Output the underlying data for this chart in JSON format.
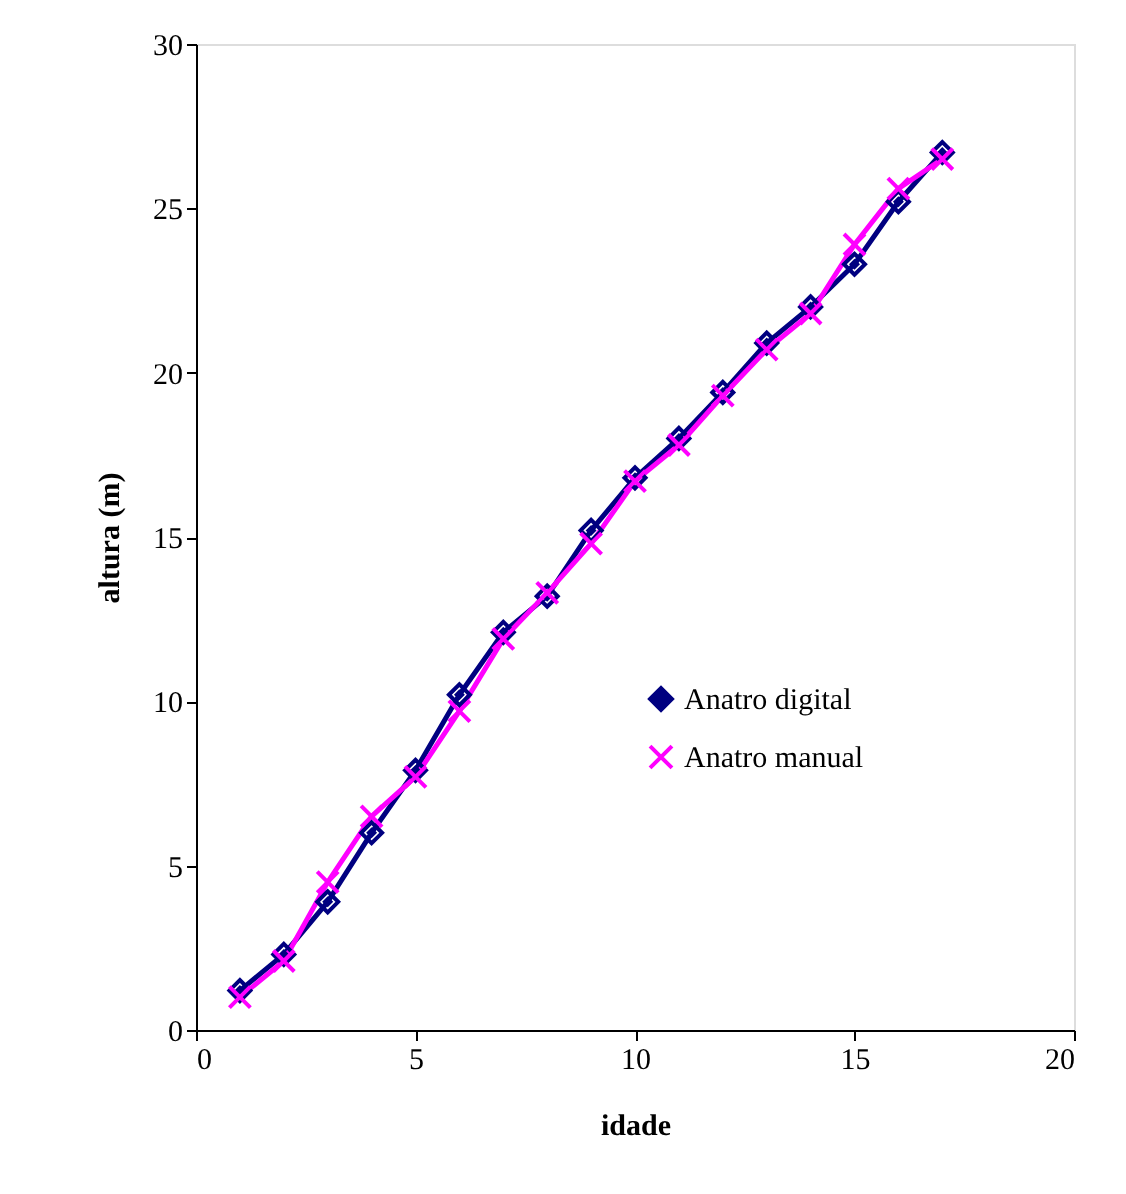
{
  "chart_data": {
    "type": "line",
    "xlabel": "idade",
    "ylabel": "altura (m)",
    "x": [
      1,
      2,
      3,
      4,
      5,
      6,
      7,
      8,
      9,
      10,
      11,
      12,
      13,
      14,
      15,
      16,
      17
    ],
    "series": [
      {
        "name": "Anatro digital",
        "color": "#000080",
        "marker": "diamond",
        "values": [
          1.2,
          2.3,
          3.9,
          6.0,
          7.9,
          10.2,
          12.1,
          13.2,
          15.2,
          16.8,
          18.0,
          19.4,
          20.9,
          22.0,
          23.3,
          25.2,
          26.7
        ]
      },
      {
        "name": "Anatro manual",
        "color": "#ff00ff",
        "marker": "cross",
        "values": [
          1.0,
          2.1,
          4.5,
          6.5,
          7.7,
          9.7,
          11.9,
          13.3,
          14.8,
          16.7,
          17.8,
          19.3,
          20.7,
          21.8,
          23.9,
          25.6,
          26.5
        ]
      }
    ],
    "xlim": [
      0,
      20
    ],
    "xticks": [
      0,
      5,
      10,
      15,
      20
    ],
    "ylim": [
      0,
      30
    ],
    "yticks": [
      0,
      5,
      10,
      15,
      20,
      25,
      30
    ],
    "grid": false,
    "legend": "right",
    "line_style": "solid"
  }
}
